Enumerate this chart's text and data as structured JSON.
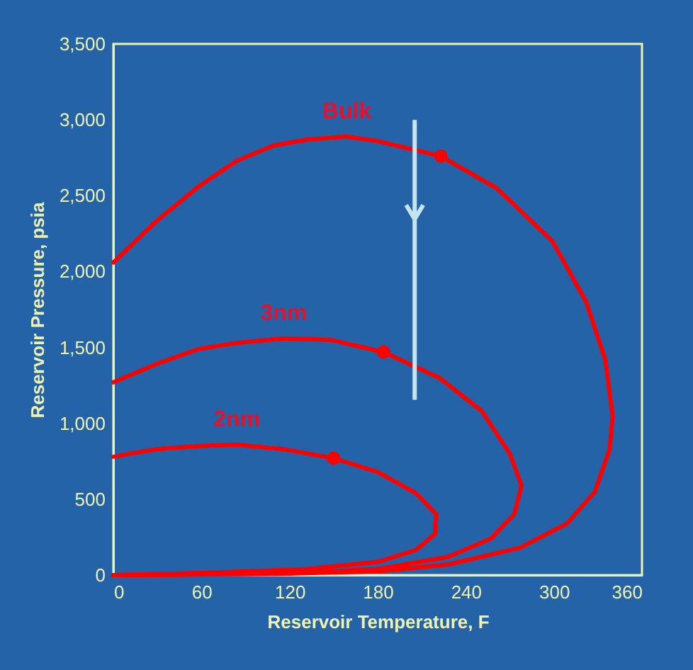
{
  "chart_data": {
    "type": "line",
    "xlabel": "Reservoir Temperature, F",
    "ylabel": "Reservoir Pressure, psia",
    "xlim": [
      0,
      360
    ],
    "xticks": [
      0,
      60,
      120,
      180,
      240,
      300,
      360
    ],
    "ylim": [
      0,
      3500
    ],
    "yticks": [
      0,
      500,
      {
        "value": 1000,
        "label": "1,000"
      },
      {
        "value": 1500,
        "label": "1,500"
      },
      {
        "value": 2000,
        "label": "2,000"
      },
      {
        "value": 2500,
        "label": "2,500"
      },
      {
        "value": 3000,
        "label": "3,000"
      },
      {
        "value": 3500,
        "label": "3,500"
      }
    ],
    "grid": false,
    "line_style": "solid",
    "series": [
      {
        "name": "Bulk",
        "color": "#ff0000",
        "x": [
          0,
          29,
          58,
          84,
          109,
          132,
          159,
          180,
          223,
          261,
          299,
          322,
          335,
          340,
          338,
          328,
          309,
          277,
          228,
          180,
          116,
          51,
          0
        ],
        "values": [
          2060,
          2330,
          2560,
          2730,
          2830,
          2870,
          2890,
          2860,
          2760,
          2550,
          2200,
          1800,
          1420,
          1050,
          830,
          550,
          340,
          180,
          70,
          25,
          9,
          3,
          0
        ]
      },
      {
        "name": "3nm",
        "color": "#ff0000",
        "x": [
          0,
          29,
          58,
          84,
          116,
          148,
          184,
          222,
          251,
          270,
          278,
          273,
          257,
          228,
          180,
          116,
          0
        ],
        "values": [
          1270,
          1390,
          1490,
          1530,
          1560,
          1550,
          1470,
          1300,
          1080,
          800,
          590,
          400,
          240,
          120,
          40,
          9,
          0
        ]
      },
      {
        "name": "2nm",
        "color": "#ff0000",
        "x": [
          0,
          29,
          58,
          84,
          116,
          150,
          180,
          206,
          220,
          219,
          206,
          180,
          132,
          68,
          0
        ],
        "values": [
          780,
          830,
          850,
          860,
          830,
          770,
          680,
          540,
          400,
          270,
          165,
          87,
          40,
          16,
          0
        ]
      },
      {
        "type": "scatter",
        "marker": "circle",
        "color": "#ff0000",
        "x": [
          223,
          184,
          150
        ],
        "values": [
          2760,
          1470,
          770
        ]
      }
    ]
  }
}
